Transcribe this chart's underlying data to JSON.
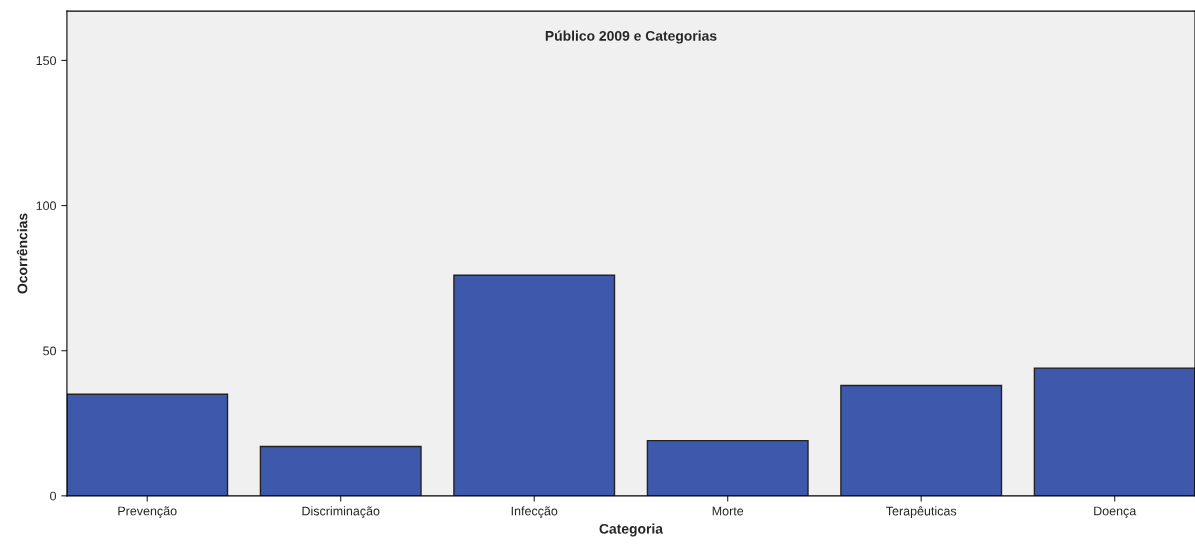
{
  "chart_data": {
    "type": "bar",
    "title": "Público 2009 e Categorias",
    "xlabel": "Categoria",
    "ylabel": "Ocorrências",
    "categories": [
      "Prevenção",
      "Discriminação",
      "Infecção",
      "Morte",
      "Terapêuticas",
      "Doença"
    ],
    "values": [
      35,
      17,
      76,
      19,
      38,
      44
    ],
    "color": "#3e58ac",
    "ylim": [
      0,
      167
    ],
    "yticks": [
      0,
      50,
      100,
      150
    ],
    "grid": false
  }
}
